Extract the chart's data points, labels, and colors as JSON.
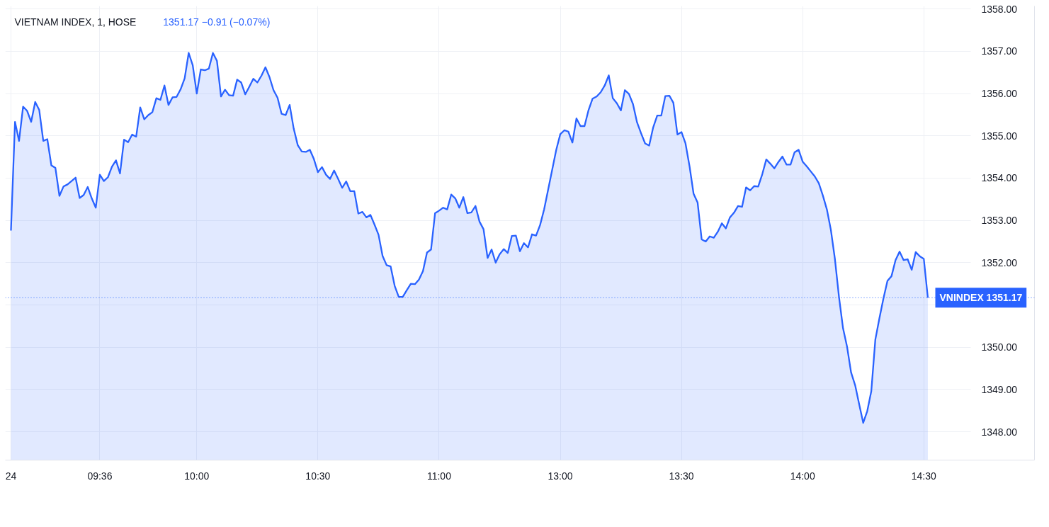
{
  "chart_data": {
    "type": "area",
    "title": "VIETNAM INDEX, 1, HOSE",
    "subtitle": "1351.17 −0.91 (−0.07%)",
    "categories": [
      "24",
      null,
      null,
      null,
      null,
      null,
      null,
      null,
      null,
      null,
      null,
      null,
      null,
      null,
      null,
      null,
      null,
      null,
      null,
      null,
      null,
      null,
      "09:36",
      null,
      null,
      null,
      null,
      null,
      null,
      null,
      null,
      null,
      null,
      null,
      null,
      null,
      null,
      null,
      null,
      null,
      null,
      null,
      null,
      null,
      null,
      null,
      "10:00",
      null,
      null,
      null,
      null,
      null,
      null,
      null,
      null,
      null,
      null,
      null,
      null,
      null,
      null,
      null,
      null,
      null,
      null,
      null,
      null,
      null,
      null,
      null,
      null,
      null,
      null,
      null,
      null,
      null,
      "10:30",
      null,
      null,
      null,
      null,
      null,
      null,
      null,
      null,
      null,
      null,
      null,
      null,
      null,
      null,
      null,
      null,
      null,
      null,
      null,
      null,
      null,
      null,
      null,
      null,
      null,
      null,
      null,
      null,
      null,
      "11:00",
      null,
      null,
      null,
      null,
      null,
      null,
      null,
      null,
      null,
      null,
      null,
      null,
      null,
      null,
      null,
      null,
      null,
      null,
      null,
      null,
      null,
      null,
      null,
      null,
      null,
      null,
      null,
      null,
      null,
      "13:00",
      null,
      null,
      null,
      null,
      null,
      null,
      null,
      null,
      null,
      null,
      null,
      null,
      null,
      null,
      null,
      null,
      null,
      null,
      null,
      null,
      null,
      null,
      null,
      null,
      null,
      null,
      null,
      null,
      null,
      "13:30",
      null,
      null,
      null,
      null,
      null,
      null,
      null,
      null,
      null,
      null,
      null,
      null,
      null,
      null,
      null,
      null,
      null,
      null,
      null,
      null,
      null,
      null,
      null,
      null,
      null,
      null,
      null,
      null,
      null,
      "14:00",
      null,
      null,
      null,
      null,
      null,
      null,
      null,
      null,
      null,
      null,
      null,
      null,
      null,
      null,
      null,
      null,
      null,
      null,
      null,
      null,
      null,
      null,
      null,
      null,
      null,
      null,
      null,
      null,
      null,
      "14:30",
      null
    ],
    "series": [
      {
        "color": "#2962ff",
        "values": [
          1352.76,
          1355.33,
          1354.88,
          1355.69,
          1355.59,
          1355.33,
          1355.8,
          1355.61,
          1354.88,
          1354.92,
          1354.3,
          1354.24,
          1353.58,
          1353.8,
          1353.85,
          1353.93,
          1354.01,
          1353.53,
          1353.6,
          1353.79,
          1353.52,
          1353.3,
          1354.08,
          1353.93,
          1354.02,
          1354.27,
          1354.42,
          1354.11,
          1354.91,
          1354.85,
          1355.03,
          1354.98,
          1355.67,
          1355.39,
          1355.49,
          1355.56,
          1355.89,
          1355.85,
          1356.19,
          1355.73,
          1355.91,
          1355.92,
          1356.1,
          1356.36,
          1356.96,
          1356.67,
          1356.0,
          1356.57,
          1356.55,
          1356.59,
          1356.96,
          1356.77,
          1355.93,
          1356.09,
          1355.96,
          1355.95,
          1356.33,
          1356.26,
          1355.98,
          1356.16,
          1356.35,
          1356.26,
          1356.42,
          1356.62,
          1356.39,
          1356.08,
          1355.9,
          1355.52,
          1355.49,
          1355.73,
          1355.17,
          1354.78,
          1354.63,
          1354.62,
          1354.67,
          1354.45,
          1354.14,
          1354.26,
          1354.08,
          1353.98,
          1354.18,
          1353.98,
          1353.77,
          1353.92,
          1353.69,
          1353.69,
          1353.16,
          1353.2,
          1353.07,
          1353.13,
          1352.9,
          1352.66,
          1352.16,
          1351.94,
          1351.91,
          1351.45,
          1351.19,
          1351.19,
          1351.35,
          1351.5,
          1351.49,
          1351.6,
          1351.8,
          1352.24,
          1352.31,
          1353.17,
          1353.23,
          1353.3,
          1353.26,
          1353.61,
          1353.52,
          1353.3,
          1353.55,
          1353.17,
          1353.19,
          1353.34,
          1352.97,
          1352.79,
          1352.11,
          1352.31,
          1352.0,
          1352.2,
          1352.32,
          1352.23,
          1352.63,
          1352.64,
          1352.27,
          1352.46,
          1352.36,
          1352.67,
          1352.64,
          1352.89,
          1353.26,
          1353.73,
          1354.2,
          1354.67,
          1355.04,
          1355.13,
          1355.1,
          1354.84,
          1355.41,
          1355.23,
          1355.23,
          1355.61,
          1355.88,
          1355.93,
          1356.03,
          1356.19,
          1356.43,
          1355.89,
          1355.77,
          1355.6,
          1356.08,
          1355.99,
          1355.75,
          1355.32,
          1355.06,
          1354.82,
          1354.77,
          1355.2,
          1355.48,
          1355.48,
          1355.94,
          1355.95,
          1355.78,
          1355.03,
          1355.09,
          1354.82,
          1354.28,
          1353.63,
          1353.42,
          1352.55,
          1352.5,
          1352.62,
          1352.59,
          1352.73,
          1352.93,
          1352.81,
          1353.07,
          1353.18,
          1353.34,
          1353.32,
          1353.78,
          1353.71,
          1353.81,
          1353.8,
          1354.09,
          1354.44,
          1354.34,
          1354.23,
          1354.38,
          1354.51,
          1354.32,
          1354.32,
          1354.61,
          1354.67,
          1354.39,
          1354.28,
          1354.16,
          1354.04,
          1353.88,
          1353.59,
          1353.26,
          1352.77,
          1352.08,
          1351.19,
          1350.45,
          1350.01,
          1349.4,
          1349.1,
          1348.65,
          1348.21,
          1348.49,
          1348.96,
          1350.18,
          1350.68,
          1351.15,
          1351.57,
          1351.68,
          1352.06,
          1352.26,
          1352.06,
          1352.08,
          1351.83,
          1352.25,
          1352.15,
          1352.09,
          1351.17
        ]
      }
    ],
    "ylim": [
      1347.33,
      1358.07
    ],
    "yticks": [
      {
        "value": 1348,
        "label": "1348.00"
      },
      {
        "value": 1349,
        "label": "1349.00"
      },
      {
        "value": 1350,
        "label": "1350.00"
      },
      {
        "value": 1351,
        "label": null
      },
      {
        "value": 1352,
        "label": "1352.00"
      },
      {
        "value": 1353,
        "label": "1353.00"
      },
      {
        "value": 1354,
        "label": "1354.00"
      },
      {
        "value": 1355,
        "label": "1355.00"
      },
      {
        "value": 1356,
        "label": "1356.00"
      },
      {
        "value": 1357,
        "label": "1357.00"
      },
      {
        "value": 1358,
        "label": "1358.00"
      }
    ],
    "ref_lines": [
      {
        "axis": "y",
        "value": 1351.17,
        "label": "VNINDEX 1351.17",
        "color": "#2962ff",
        "line_style": "dotted"
      }
    ],
    "grid": true
  }
}
